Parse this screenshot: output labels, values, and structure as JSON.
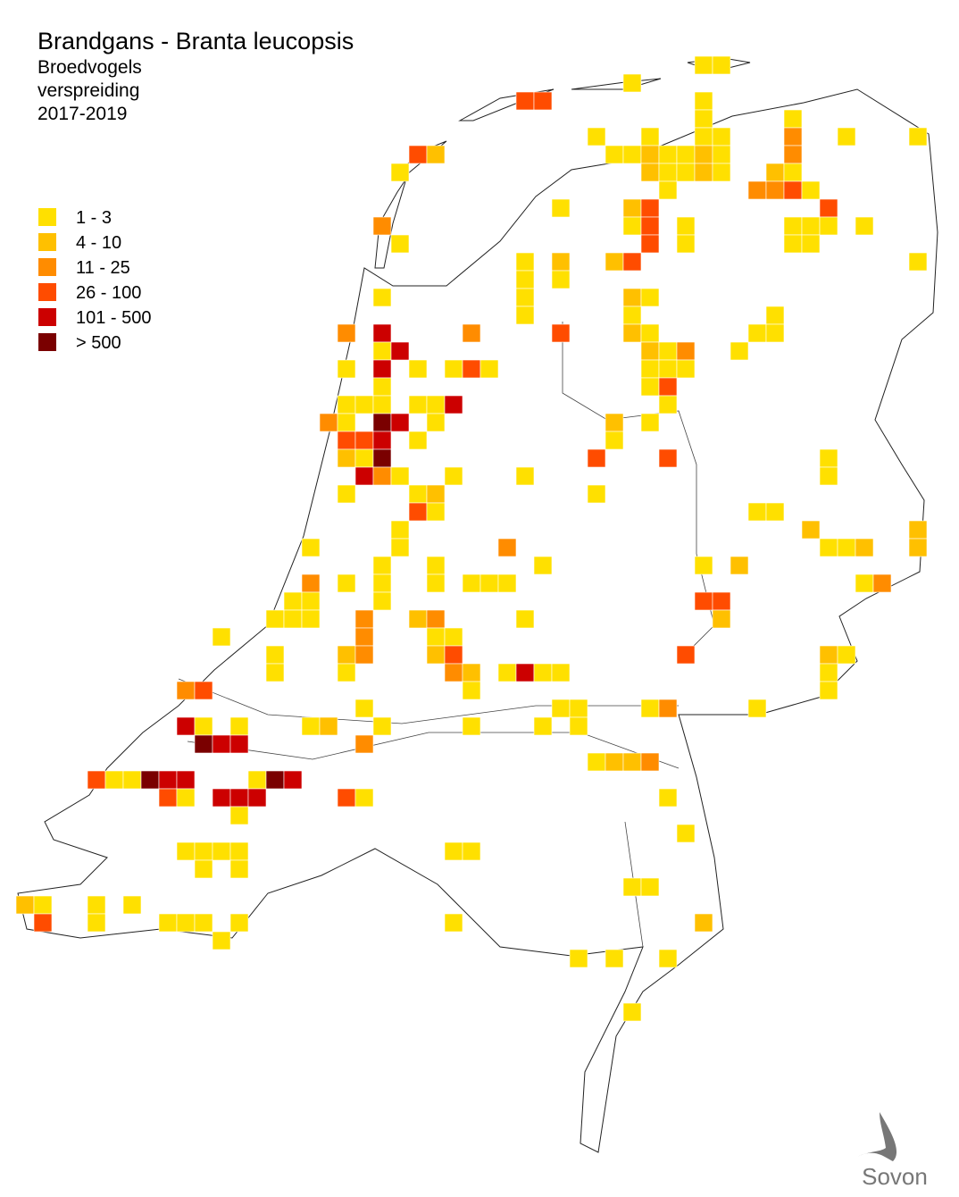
{
  "title": "Brandgans - Branta leucopsis",
  "subtitle_lines": [
    "Broedvogels",
    "verspreiding",
    "2017-2019"
  ],
  "legend": [
    {
      "label": "1 - 3",
      "color": "#ffe000"
    },
    {
      "label": "4 - 10",
      "color": "#ffc000"
    },
    {
      "label": "11 - 25",
      "color": "#ff8c00"
    },
    {
      "label": "26 - 100",
      "color": "#ff4c00"
    },
    {
      "label": "101 - 500",
      "color": "#cc0000"
    },
    {
      "label": "> 500",
      "color": "#7a0000"
    }
  ],
  "logo": "Sovon"
}
